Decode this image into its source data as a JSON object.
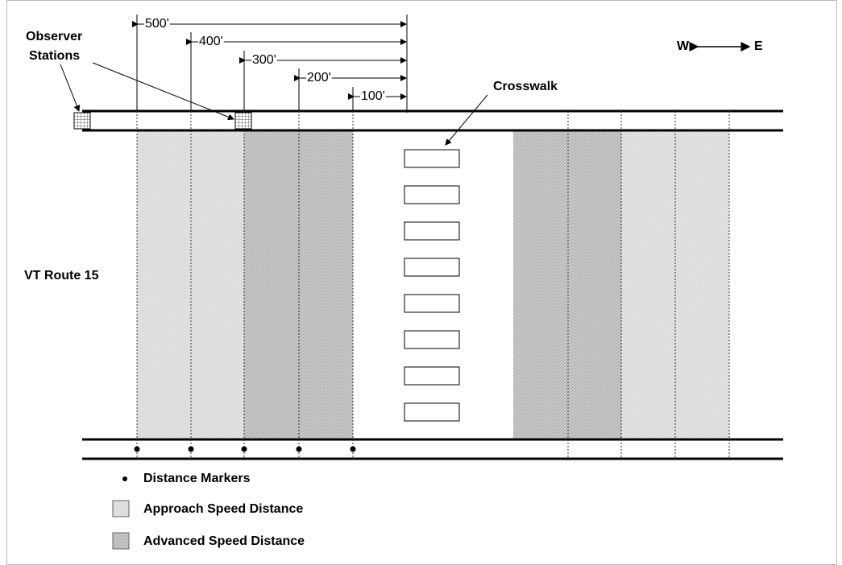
{
  "observer_stations": [
    "Observer",
    "Stations"
  ],
  "dimensions": [
    "500'",
    "400'",
    "300'",
    "200'",
    "100'"
  ],
  "compass": {
    "west": "W",
    "east": "E"
  },
  "crosswalk": "Crosswalk",
  "road": "VT Route 15",
  "legend": [
    "Distance Markers",
    "Approach Speed Distance",
    "Advanced Speed Distance"
  ]
}
